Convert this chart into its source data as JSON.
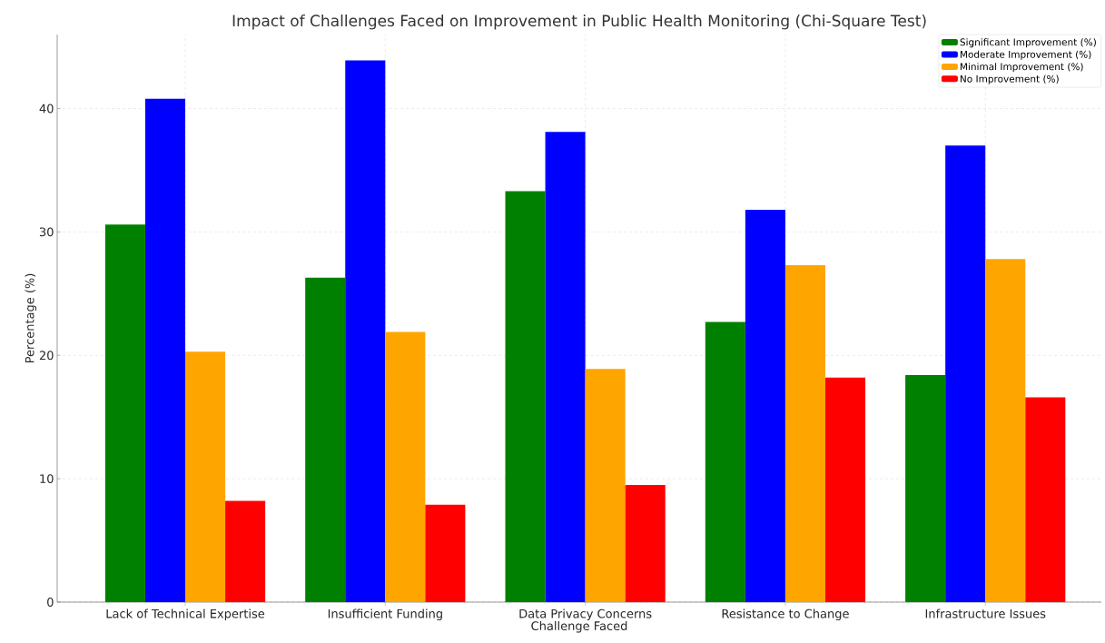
{
  "chart_data": {
    "type": "bar",
    "title": "Impact of Challenges Faced on Improvement in Public Health Monitoring (Chi-Square Test)",
    "xlabel": "Challenge Faced",
    "ylabel": "Percentage (%)",
    "categories": [
      "Lack of Technical Expertise",
      "Insufficient Funding",
      "Data Privacy Concerns",
      "Resistance to Change",
      "Infrastructure Issues"
    ],
    "series": [
      {
        "name": "Significant Improvement (%)",
        "color": "#008000",
        "values": [
          30.6,
          26.3,
          33.3,
          22.7,
          18.4
        ]
      },
      {
        "name": "Moderate Improvement (%)",
        "color": "#0000ff",
        "values": [
          40.8,
          43.9,
          38.1,
          31.8,
          37.0
        ]
      },
      {
        "name": "Minimal Improvement (%)",
        "color": "#ffa500",
        "values": [
          20.3,
          21.9,
          18.9,
          27.3,
          27.8
        ]
      },
      {
        "name": "No Improvement (%)",
        "color": "#ff0000",
        "values": [
          8.2,
          7.9,
          9.5,
          18.2,
          16.6
        ]
      }
    ],
    "ylim": [
      0,
      46
    ],
    "yticks": [
      0,
      10,
      20,
      30,
      40
    ],
    "grid": true,
    "legend": "top right"
  }
}
